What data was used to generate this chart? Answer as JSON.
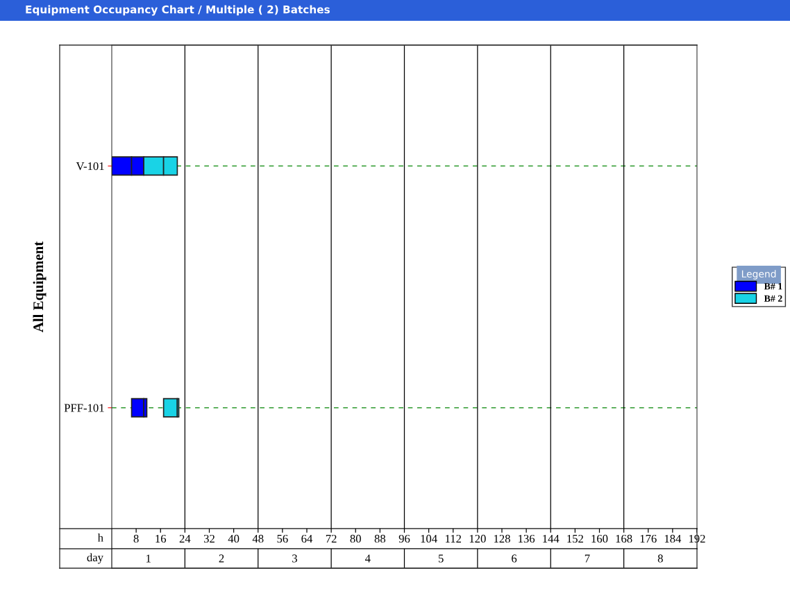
{
  "chart_data": {
    "type": "bar",
    "orientation": "horizontal",
    "title": "Equipment Occupancy Chart / Multiple ( 2) Batches",
    "ylabel": "All Equipment",
    "xlabel": "h",
    "x2label": "day",
    "legend_title": "Legend",
    "legend": "right",
    "grid": "y",
    "categories": [
      "V-101",
      "PFF-101"
    ],
    "series": [
      {
        "name": "B# 1",
        "color": "#0000ff",
        "values": [
          6.5,
          4
        ],
        "base": [
          0,
          6.5
        ]
      },
      {
        "color": "#0000ff",
        "values": [
          4,
          1
        ],
        "base": [
          6.5,
          10.5
        ]
      },
      {
        "name": "B# 2",
        "color": "#19d3e6",
        "values": [
          6.5,
          4.5
        ],
        "base": [
          10.5,
          17
        ]
      },
      {
        "color": "#19d3e6",
        "values": [
          4.5,
          0.5
        ],
        "base": [
          17,
          21.5
        ]
      }
    ],
    "xlim": [
      0,
      192
    ],
    "xticks": [
      8,
      16,
      24,
      32,
      40,
      48,
      56,
      64,
      72,
      80,
      88,
      96,
      104,
      112,
      120,
      128,
      136,
      144,
      152,
      160,
      168,
      176,
      184,
      192
    ],
    "x2lim": [
      0.5,
      8.5
    ],
    "x2ticks": [
      1,
      2,
      3,
      4,
      5,
      6,
      7,
      8
    ],
    "ref_lines": [
      {
        "axis": "x",
        "value": 24,
        "color": "#000000"
      },
      {
        "axis": "x",
        "value": 48,
        "color": "#000000"
      },
      {
        "axis": "x",
        "value": 72,
        "color": "#000000"
      },
      {
        "axis": "x",
        "value": 96,
        "color": "#000000"
      },
      {
        "axis": "x",
        "value": 120,
        "color": "#000000"
      },
      {
        "axis": "x",
        "value": 144,
        "color": "#000000"
      },
      {
        "axis": "x",
        "value": 168,
        "color": "#000000"
      }
    ]
  }
}
